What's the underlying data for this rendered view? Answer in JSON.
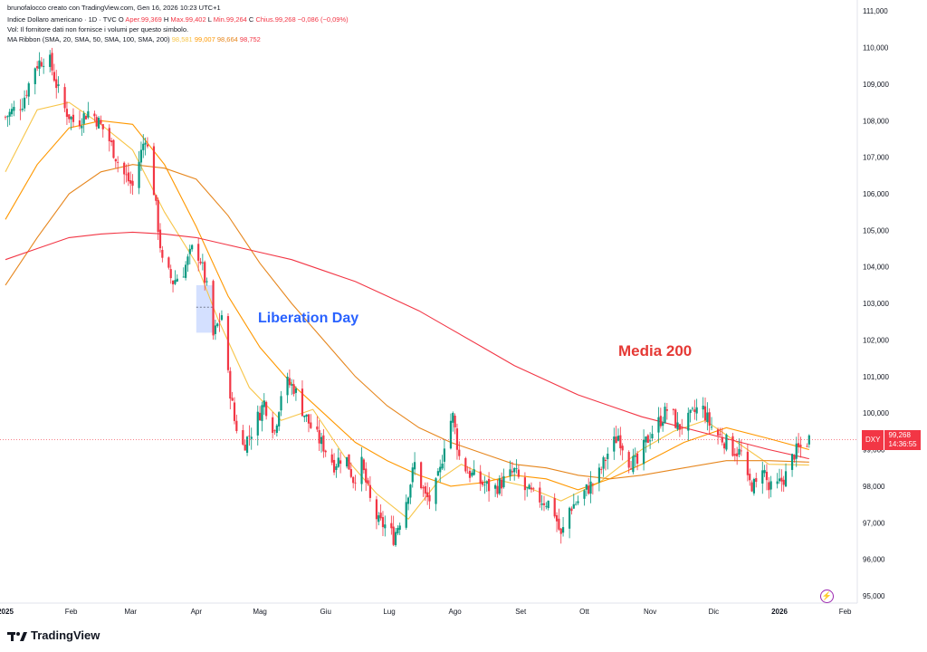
{
  "header": {
    "credit": "brunofalocco creato con TradingView.com, Gen 16, 2026 10:23 UTC+1",
    "symbol_line": {
      "name": "Indice Dollaro americano · 1D · TVC",
      "o_label": "O",
      "o_val": "Aper.99,369",
      "h_label": "H",
      "h_val": "Max.99,402",
      "l_label": "L",
      "l_val": "Min.99,264",
      "c_label": "C",
      "c_val": "Chius.99,268",
      "change": "−0,086 (−0,09%)"
    },
    "vol_line": "Vol: Il fornitore dati non fornisce i volumi per questo simbolo.",
    "ma_line": {
      "label": "MA Ribbon (SMA, 20, SMA, 50, SMA, 100, SMA, 200)",
      "v20": "98,581",
      "v50": "99,007",
      "v100": "98,664",
      "v200": "98,752"
    }
  },
  "price_tag": {
    "symbol": "DXY",
    "price": "99,268",
    "countdown": "14:36:55"
  },
  "annotations": {
    "liberation_day": "Liberation Day",
    "media_200": "Media 200"
  },
  "logo": {
    "text": "TradingView"
  },
  "colors": {
    "up": "#089981",
    "down": "#f23645",
    "ma20": "#f7c548",
    "ma50": "#ff9800",
    "ma100": "#e6861d",
    "ma200": "#f23645",
    "highlight": "#2962ff"
  },
  "chart_data": {
    "type": "candlestick",
    "title": "",
    "ylim": [
      95,
      111.5
    ],
    "y_ticks": [
      "95,000",
      "96,000",
      "97,000",
      "98,000",
      "99,000",
      "100,000",
      "101,000",
      "102,000",
      "103,000",
      "104,000",
      "105,000",
      "106,000",
      "107,000",
      "108,000",
      "109,000",
      "110,000",
      "111,000"
    ],
    "x_labels": [
      {
        "label": "2025",
        "bold": true,
        "day": 0
      },
      {
        "label": "Feb",
        "day": 31
      },
      {
        "label": "Mar",
        "day": 59
      },
      {
        "label": "Apr",
        "day": 90
      },
      {
        "label": "Mag",
        "day": 120
      },
      {
        "label": "Giu",
        "day": 151
      },
      {
        "label": "Lug",
        "day": 181
      },
      {
        "label": "Ago",
        "day": 212
      },
      {
        "label": "Set",
        "day": 243
      },
      {
        "label": "Ott",
        "day": 273
      },
      {
        "label": "Nov",
        "day": 304
      },
      {
        "label": "Dic",
        "day": 334
      },
      {
        "label": "2026",
        "bold": true,
        "day": 365
      },
      {
        "label": "Feb",
        "day": 396
      }
    ],
    "close_path": [
      [
        0,
        108.1
      ],
      [
        8,
        108.5
      ],
      [
        14,
        109.5
      ],
      [
        20,
        109.8
      ],
      [
        27,
        108.4
      ],
      [
        33,
        107.9
      ],
      [
        40,
        108.3
      ],
      [
        48,
        107.6
      ],
      [
        55,
        106.6
      ],
      [
        60,
        106.2
      ],
      [
        66,
        107.6
      ],
      [
        70,
        106.1
      ],
      [
        74,
        104.1
      ],
      [
        79,
        103.6
      ],
      [
        84,
        103.9
      ],
      [
        89,
        104.6
      ],
      [
        92,
        104.2
      ],
      [
        95,
        103.4
      ],
      [
        98,
        102.1
      ],
      [
        102,
        102.7
      ],
      [
        105,
        101.0
      ],
      [
        108,
        99.8
      ],
      [
        112,
        99.1
      ],
      [
        117,
        99.6
      ],
      [
        122,
        100.3
      ],
      [
        127,
        99.5
      ],
      [
        131,
        100.9
      ],
      [
        136,
        100.7
      ],
      [
        140,
        100.1
      ],
      [
        145,
        99.5
      ],
      [
        150,
        99.1
      ],
      [
        155,
        98.6
      ],
      [
        160,
        98.9
      ],
      [
        164,
        98.2
      ],
      [
        168,
        98.6
      ],
      [
        172,
        97.6
      ],
      [
        176,
        97.0
      ],
      [
        180,
        96.9
      ],
      [
        183,
        96.6
      ],
      [
        188,
        97.4
      ],
      [
        193,
        98.6
      ],
      [
        198,
        97.7
      ],
      [
        201,
        97.6
      ],
      [
        205,
        98.4
      ],
      [
        208,
        99.6
      ],
      [
        211,
        99.9
      ],
      [
        214,
        98.8
      ],
      [
        218,
        98.4
      ],
      [
        224,
        98.1
      ],
      [
        230,
        97.9
      ],
      [
        236,
        98.2
      ],
      [
        240,
        98.4
      ],
      [
        245,
        97.9
      ],
      [
        250,
        97.7
      ],
      [
        254,
        97.6
      ],
      [
        258,
        97.5
      ],
      [
        262,
        96.6
      ],
      [
        266,
        97.4
      ],
      [
        270,
        97.6
      ],
      [
        274,
        97.9
      ],
      [
        279,
        98.2
      ],
      [
        284,
        98.9
      ],
      [
        289,
        99.4
      ],
      [
        294,
        98.7
      ],
      [
        298,
        98.6
      ],
      [
        302,
        99.2
      ],
      [
        306,
        99.6
      ],
      [
        310,
        99.9
      ],
      [
        313,
        100.2
      ],
      [
        317,
        99.6
      ],
      [
        322,
        99.8
      ],
      [
        326,
        100.1
      ],
      [
        329,
        100.1
      ],
      [
        332,
        99.7
      ],
      [
        336,
        99.4
      ],
      [
        340,
        99.2
      ],
      [
        343,
        99.0
      ],
      [
        347,
        98.9
      ],
      [
        350,
        98.1
      ],
      [
        354,
        98.0
      ],
      [
        357,
        98.6
      ],
      [
        360,
        97.9
      ],
      [
        364,
        98.0
      ],
      [
        368,
        98.3
      ],
      [
        372,
        98.9
      ],
      [
        376,
        99.1
      ],
      [
        379,
        99.3
      ]
    ],
    "last_day": 379,
    "series": [
      {
        "name": "SMA 20",
        "color": "#f7c548",
        "points": [
          [
            0,
            106.6
          ],
          [
            15,
            108.3
          ],
          [
            30,
            108.5
          ],
          [
            45,
            107.9
          ],
          [
            60,
            107.2
          ],
          [
            75,
            105.5
          ],
          [
            90,
            104.1
          ],
          [
            100,
            102.6
          ],
          [
            115,
            100.7
          ],
          [
            130,
            99.8
          ],
          [
            145,
            100.1
          ],
          [
            160,
            98.8
          ],
          [
            175,
            97.8
          ],
          [
            190,
            97.1
          ],
          [
            205,
            98.2
          ],
          [
            215,
            98.6
          ],
          [
            230,
            98.2
          ],
          [
            245,
            98.0
          ],
          [
            262,
            97.6
          ],
          [
            280,
            98.1
          ],
          [
            300,
            99.0
          ],
          [
            315,
            99.5
          ],
          [
            330,
            99.8
          ],
          [
            345,
            99.2
          ],
          [
            360,
            98.6
          ],
          [
            379,
            98.58
          ]
        ]
      },
      {
        "name": "SMA 50",
        "color": "#ff9800",
        "points": [
          [
            0,
            105.3
          ],
          [
            15,
            106.8
          ],
          [
            30,
            107.8
          ],
          [
            45,
            108.0
          ],
          [
            60,
            107.9
          ],
          [
            75,
            106.8
          ],
          [
            90,
            105.1
          ],
          [
            105,
            103.2
          ],
          [
            120,
            101.8
          ],
          [
            135,
            100.8
          ],
          [
            150,
            100.0
          ],
          [
            165,
            99.2
          ],
          [
            180,
            98.7
          ],
          [
            195,
            98.3
          ],
          [
            210,
            98.0
          ],
          [
            225,
            98.1
          ],
          [
            240,
            98.3
          ],
          [
            255,
            98.2
          ],
          [
            270,
            97.9
          ],
          [
            285,
            98.2
          ],
          [
            300,
            98.6
          ],
          [
            320,
            99.2
          ],
          [
            340,
            99.6
          ],
          [
            360,
            99.3
          ],
          [
            379,
            99.0
          ]
        ]
      },
      {
        "name": "SMA 100",
        "color": "#e6861d",
        "points": [
          [
            0,
            103.5
          ],
          [
            15,
            104.8
          ],
          [
            30,
            106.0
          ],
          [
            45,
            106.6
          ],
          [
            60,
            106.8
          ],
          [
            75,
            106.7
          ],
          [
            90,
            106.4
          ],
          [
            105,
            105.4
          ],
          [
            120,
            104.1
          ],
          [
            135,
            103.0
          ],
          [
            150,
            102.0
          ],
          [
            165,
            101.0
          ],
          [
            180,
            100.2
          ],
          [
            195,
            99.6
          ],
          [
            210,
            99.2
          ],
          [
            225,
            98.9
          ],
          [
            240,
            98.6
          ],
          [
            255,
            98.5
          ],
          [
            270,
            98.3
          ],
          [
            285,
            98.2
          ],
          [
            300,
            98.3
          ],
          [
            320,
            98.5
          ],
          [
            340,
            98.7
          ],
          [
            360,
            98.7
          ],
          [
            379,
            98.66
          ]
        ]
      },
      {
        "name": "SMA 200",
        "color": "#f23645",
        "points": [
          [
            0,
            104.2
          ],
          [
            15,
            104.5
          ],
          [
            30,
            104.8
          ],
          [
            45,
            104.9
          ],
          [
            60,
            104.95
          ],
          [
            75,
            104.9
          ],
          [
            90,
            104.8
          ],
          [
            105,
            104.6
          ],
          [
            120,
            104.4
          ],
          [
            135,
            104.2
          ],
          [
            150,
            103.9
          ],
          [
            165,
            103.6
          ],
          [
            180,
            103.2
          ],
          [
            195,
            102.8
          ],
          [
            210,
            102.3
          ],
          [
            225,
            101.8
          ],
          [
            240,
            101.3
          ],
          [
            255,
            100.9
          ],
          [
            270,
            100.5
          ],
          [
            285,
            100.2
          ],
          [
            300,
            99.9
          ],
          [
            320,
            99.6
          ],
          [
            340,
            99.3
          ],
          [
            360,
            99.0
          ],
          [
            379,
            98.75
          ]
        ]
      }
    ],
    "highlight": {
      "day_start": 90,
      "day_end": 98,
      "y_top": 103.5,
      "y_bottom": 102.2,
      "mid": 102.9
    },
    "last_price": 99.268,
    "grid": false,
    "legend_placement": "top-left"
  }
}
